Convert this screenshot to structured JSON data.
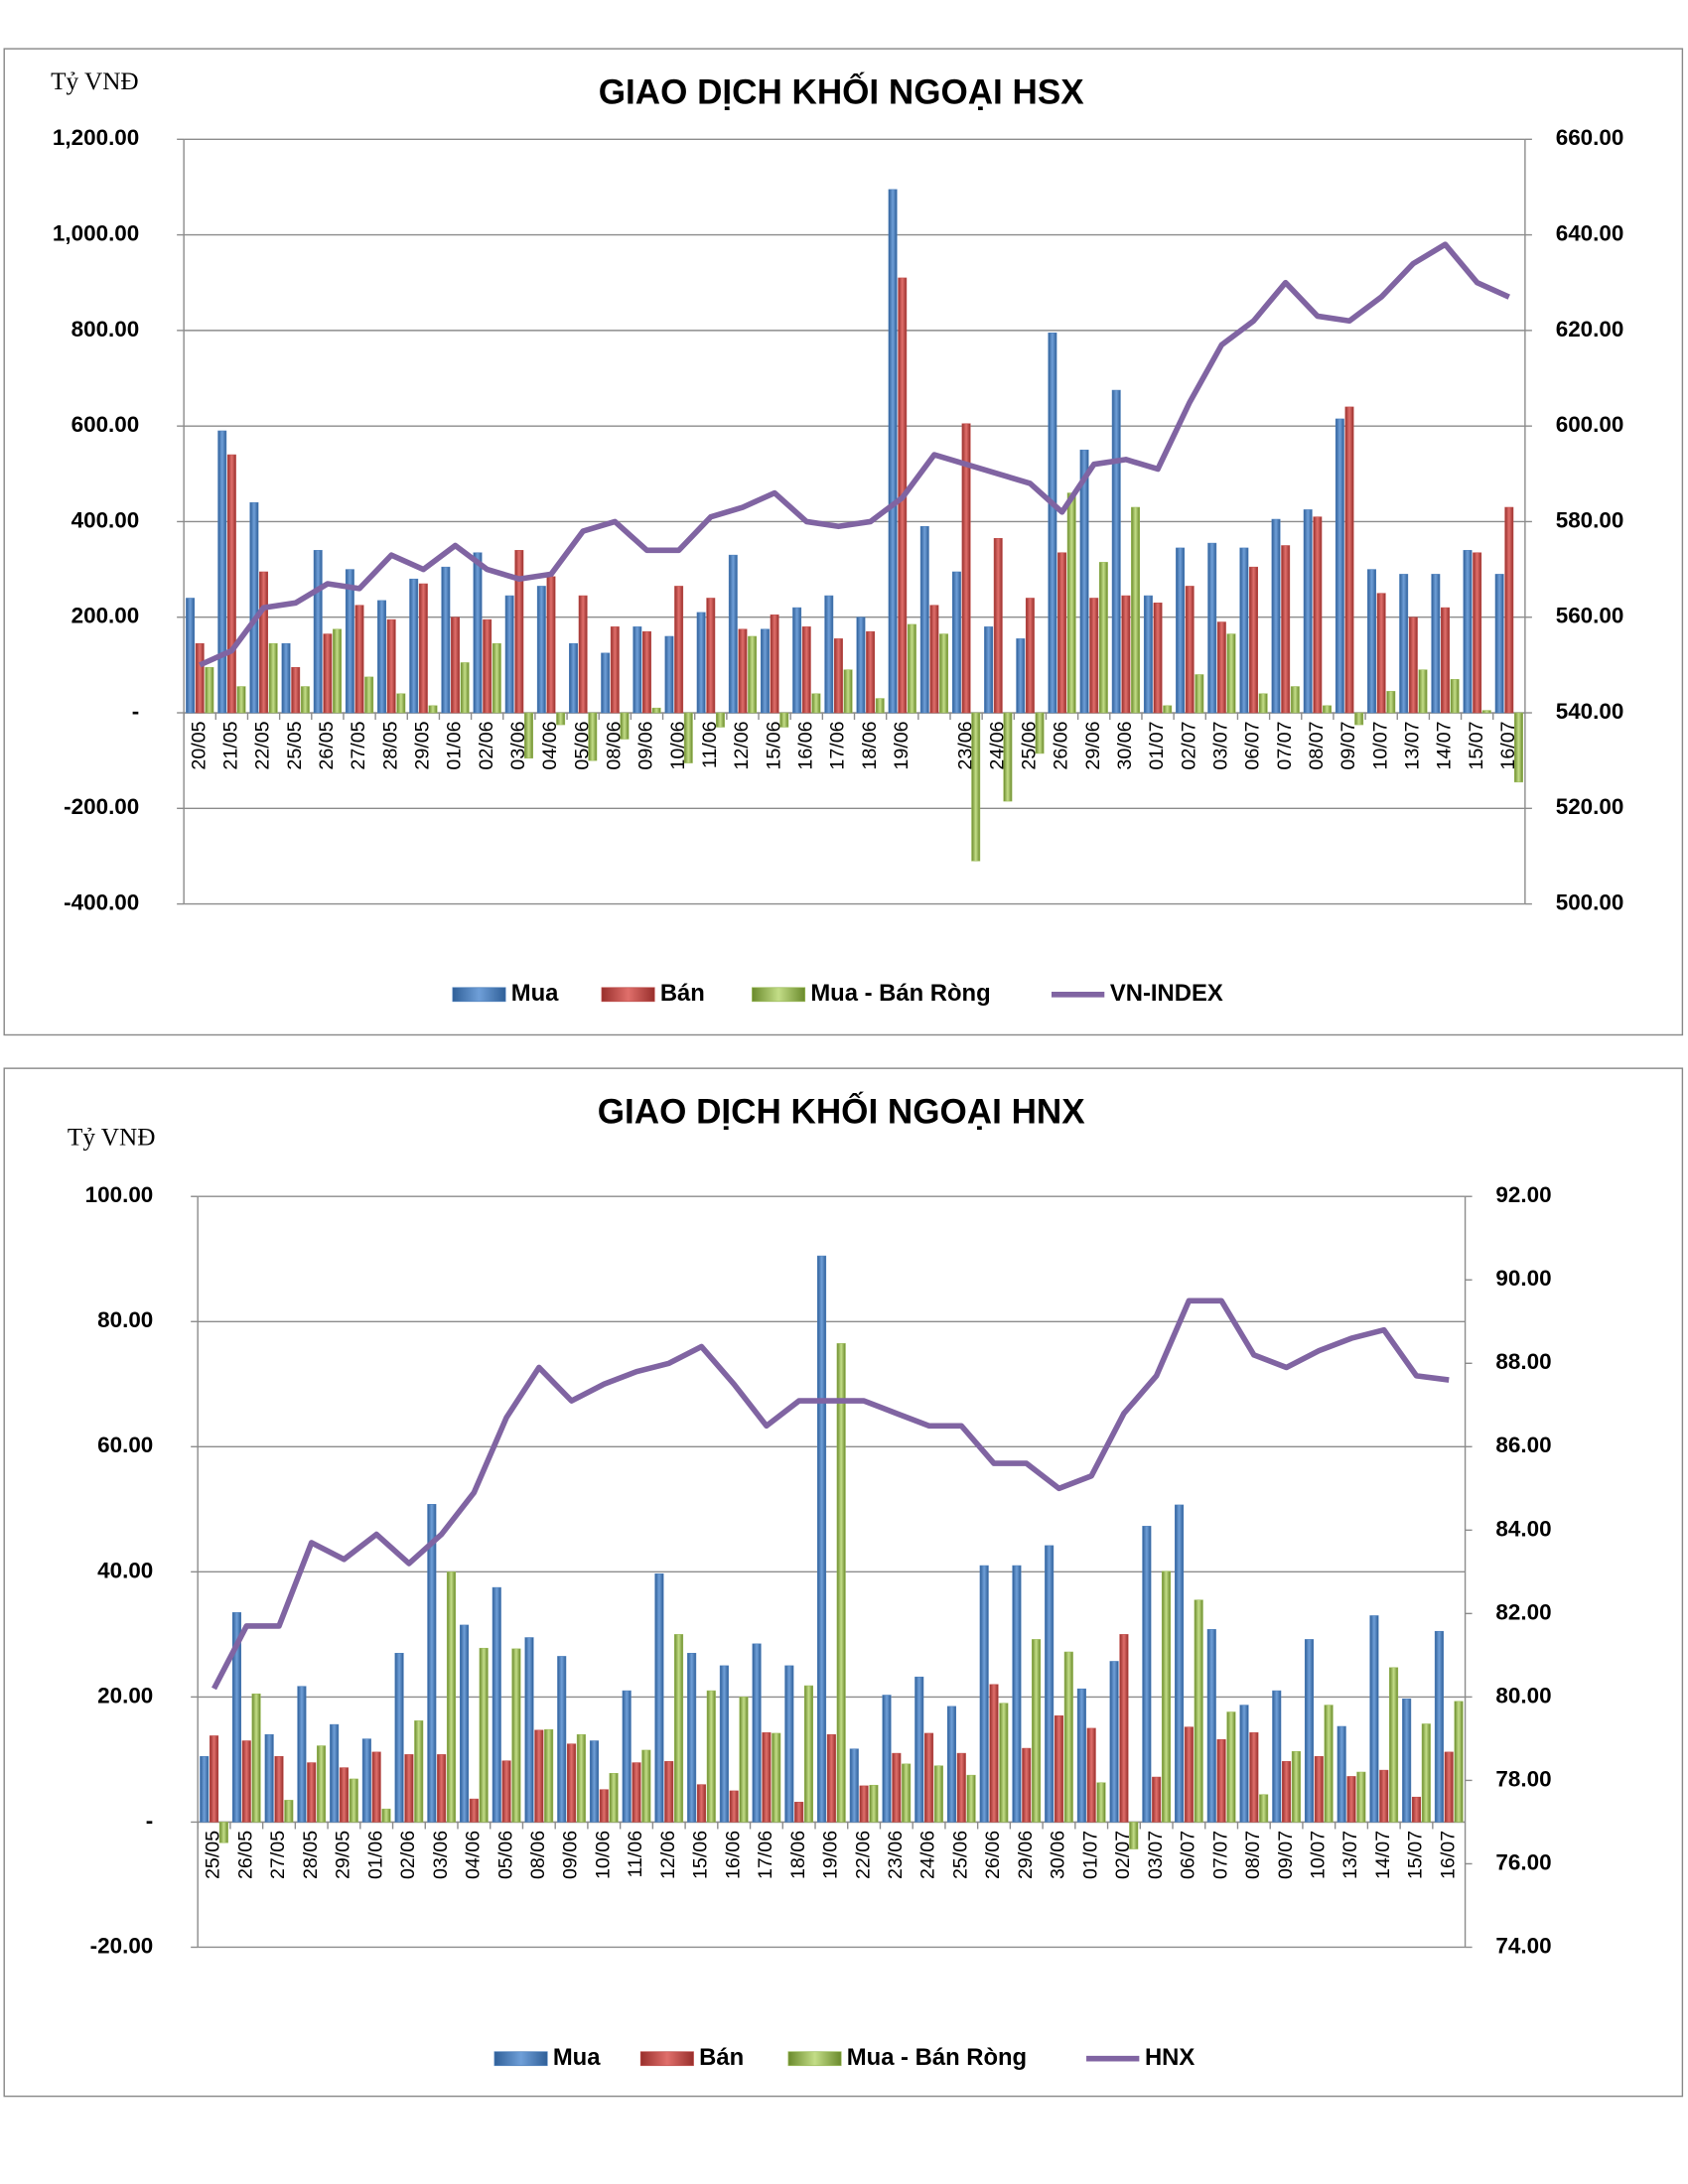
{
  "chart_data": [
    {
      "type": "bar",
      "title": "GIAO DỊCH KHỐI NGOẠI HSX",
      "y_label": "Tỷ VNĐ",
      "categories": [
        "20/05",
        "21/05",
        "22/05",
        "25/05",
        "26/05",
        "27/05",
        "28/05",
        "29/05",
        "01/06",
        "02/06",
        "03/06",
        "04/06",
        "05/06",
        "08/06",
        "09/06",
        "10/06",
        "11/06",
        "12/06",
        "15/06",
        "16/06",
        "17/06",
        "18/06",
        "19/06",
        null,
        "23/06",
        "24/06",
        "25/06",
        "26/06",
        "29/06",
        "30/06",
        "01/07",
        "02/07",
        "03/07",
        "06/07",
        "07/07",
        "08/07",
        "09/07",
        "10/07",
        "13/07",
        "14/07",
        "15/07",
        "16/07"
      ],
      "series": [
        {
          "name": "Mua",
          "color": "#4f81bd",
          "values": [
            240,
            590,
            440,
            145,
            340,
            300,
            235,
            280,
            305,
            335,
            245,
            265,
            145,
            125,
            180,
            160,
            210,
            330,
            175,
            220,
            245,
            200,
            1095,
            390,
            295,
            180,
            155,
            795,
            550,
            675,
            245,
            345,
            355,
            345,
            405,
            425,
            615,
            300,
            290,
            290,
            340,
            290
          ]
        },
        {
          "name": "Bán",
          "color": "#c0504d",
          "values": [
            145,
            540,
            295,
            95,
            165,
            225,
            195,
            270,
            200,
            195,
            340,
            285,
            245,
            180,
            170,
            265,
            240,
            175,
            205,
            180,
            155,
            170,
            910,
            225,
            605,
            365,
            240,
            335,
            240,
            245,
            230,
            265,
            190,
            305,
            350,
            410,
            640,
            250,
            200,
            220,
            335,
            430
          ]
        },
        {
          "name": "Mua - Bán Ròng",
          "color": "#9bbb59",
          "values": [
            95,
            55,
            145,
            55,
            175,
            75,
            40,
            15,
            105,
            145,
            -95,
            -25,
            -100,
            -55,
            10,
            -105,
            -30,
            160,
            -30,
            40,
            90,
            30,
            185,
            165,
            -310,
            -185,
            -85,
            460,
            315,
            430,
            15,
            80,
            165,
            40,
            55,
            15,
            -25,
            45,
            90,
            70,
            5,
            -145
          ]
        },
        {
          "name": "VN-INDEX",
          "color": "#8064a2",
          "type": "line",
          "axis": "y2",
          "values": [
            550,
            553,
            562,
            563,
            567,
            566,
            573,
            570,
            575,
            570,
            568,
            569,
            578,
            580,
            574,
            574,
            581,
            583,
            586,
            580,
            579,
            580,
            585,
            594,
            592,
            590,
            588,
            582,
            592,
            593,
            591,
            605,
            617,
            622,
            630,
            623,
            622,
            627,
            634,
            638,
            630,
            627
          ]
        }
      ],
      "ylim": [
        -400,
        1200
      ],
      "yticks": [
        {
          "value": -400,
          "label": "-400.00"
        },
        {
          "value": -200,
          "label": "-200.00"
        },
        {
          "value": 0,
          "label": "-"
        },
        {
          "value": 200,
          "label": "200.00"
        },
        {
          "value": 400,
          "label": "400.00"
        },
        {
          "value": 600,
          "label": "600.00"
        },
        {
          "value": 800,
          "label": "800.00"
        },
        {
          "value": 1000,
          "label": "1,000.00"
        },
        {
          "value": 1200,
          "label": "1,200.00"
        }
      ],
      "y2lim": [
        500,
        660
      ],
      "y2ticks": [
        {
          "value": 500,
          "label": "500.00"
        },
        {
          "value": 520,
          "label": "520.00"
        },
        {
          "value": 540,
          "label": "540.00"
        },
        {
          "value": 560,
          "label": "560.00"
        },
        {
          "value": 580,
          "label": "580.00"
        },
        {
          "value": 600,
          "label": "600.00"
        },
        {
          "value": 620,
          "label": "620.00"
        },
        {
          "value": 640,
          "label": "640.00"
        },
        {
          "value": 660,
          "label": "660.00"
        }
      ],
      "grid": true,
      "legend": "bottom"
    },
    {
      "type": "bar",
      "title": "GIAO DỊCH KHỐI NGOẠI HNX",
      "y_label": "Tỷ VNĐ",
      "categories": [
        "25/05",
        "26/05",
        "27/05",
        "28/05",
        "29/05",
        "01/06",
        "02/06",
        "03/06",
        "04/06",
        "05/06",
        "08/06",
        "09/06",
        "10/06",
        "11/06",
        "12/06",
        "15/06",
        "16/06",
        "17/06",
        "18/06",
        "19/06",
        "22/06",
        "23/06",
        "24/06",
        "25/06",
        "26/06",
        "29/06",
        "30/06",
        "01/07",
        "02/07",
        "03/07",
        "06/07",
        "07/07",
        "08/07",
        "09/07",
        "10/07",
        "13/07",
        "14/07",
        "15/07",
        "16/07"
      ],
      "series": [
        {
          "name": "Mua",
          "color": "#4f81bd",
          "values": [
            10.5,
            33.5,
            14,
            21.7,
            15.6,
            13.3,
            27,
            50.8,
            31.5,
            37.5,
            29.5,
            26.5,
            13,
            21,
            39.7,
            27,
            25,
            28.5,
            25,
            90.5,
            11.7,
            20.3,
            23.2,
            18.5,
            41,
            41,
            44.2,
            21.3,
            25.7,
            47.3,
            50.7,
            30.8,
            18.7,
            21,
            29.2,
            15.3,
            33,
            19.7,
            30.5
          ]
        },
        {
          "name": "Bán",
          "color": "#c0504d",
          "values": [
            13.8,
            13,
            10.5,
            9.5,
            8.7,
            11.2,
            10.8,
            10.8,
            3.7,
            9.8,
            14.7,
            12.5,
            5.2,
            9.5,
            9.7,
            6,
            5,
            14.3,
            3.2,
            14,
            5.8,
            11,
            14.2,
            11,
            22,
            11.8,
            17,
            15,
            30,
            7.2,
            15.2,
            13.2,
            14.3,
            9.7,
            10.5,
            7.3,
            8.3,
            4,
            11.2
          ]
        },
        {
          "name": "Mua - Bán Ròng",
          "color": "#9bbb59",
          "values": [
            -3.3,
            20.5,
            3.5,
            12.2,
            6.9,
            2.1,
            16.2,
            40,
            27.8,
            27.7,
            14.8,
            14,
            7.8,
            11.5,
            30,
            21,
            20,
            14.2,
            21.8,
            76.5,
            5.9,
            9.3,
            9,
            7.5,
            19,
            29.2,
            27.2,
            6.3,
            -4.3,
            40.1,
            35.5,
            17.6,
            4.4,
            11.3,
            18.7,
            8,
            24.7,
            15.7,
            19.3
          ]
        },
        {
          "name": "HNX",
          "color": "#8064a2",
          "type": "line",
          "axis": "y2",
          "values": [
            80.2,
            81.7,
            81.7,
            83.7,
            83.3,
            83.9,
            83.2,
            83.9,
            84.9,
            86.7,
            87.9,
            87.1,
            87.5,
            87.8,
            88,
            88.4,
            87.5,
            86.5,
            87.1,
            87.1,
            87.1,
            86.8,
            86.5,
            86.5,
            85.6,
            85.6,
            85,
            85.3,
            86.8,
            87.7,
            89.5,
            89.5,
            88.2,
            87.9,
            88.3,
            88.6,
            88.8,
            87.7,
            87.6
          ]
        }
      ],
      "ylim": [
        -20,
        100
      ],
      "yticks": [
        {
          "value": -20,
          "label": "-20.00"
        },
        {
          "value": 0,
          "label": "-"
        },
        {
          "value": 20,
          "label": "20.00"
        },
        {
          "value": 40,
          "label": "40.00"
        },
        {
          "value": 60,
          "label": "60.00"
        },
        {
          "value": 80,
          "label": "80.00"
        },
        {
          "value": 100,
          "label": "100.00"
        }
      ],
      "y2lim": [
        74,
        92
      ],
      "y2ticks": [
        {
          "value": 74,
          "label": "74.00"
        },
        {
          "value": 76,
          "label": "76.00"
        },
        {
          "value": 78,
          "label": "78.00"
        },
        {
          "value": 80,
          "label": "80.00"
        },
        {
          "value": 82,
          "label": "82.00"
        },
        {
          "value": 84,
          "label": "84.00"
        },
        {
          "value": 86,
          "label": "86.00"
        },
        {
          "value": 88,
          "label": "88.00"
        },
        {
          "value": 90,
          "label": "90.00"
        },
        {
          "value": 92,
          "label": "92.00"
        }
      ],
      "grid": true,
      "legend": "bottom"
    }
  ]
}
